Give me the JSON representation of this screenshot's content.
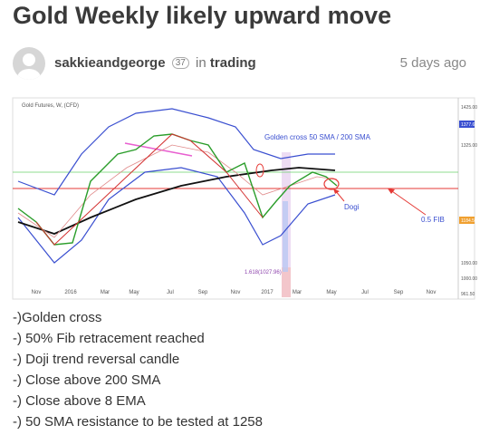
{
  "header": {
    "title": "Gold Weekly likely upward move"
  },
  "author": {
    "username": "sakkieandgeorge",
    "reputation": "37",
    "in": "in",
    "category": "trading",
    "posted": "5 days ago"
  },
  "chart": {
    "symbol": "Gold Futures, W, (CFD)",
    "annotations": {
      "golden_cross": "Golden cross 50 SMA / 200 SMA",
      "dogi": "Dogi",
      "fib": "0.5 FIB",
      "fib_ext": "1.618(1027.96)"
    },
    "x_labels": [
      "Nov",
      "2016",
      "Mar",
      "May",
      "Jul",
      "Sep",
      "Nov",
      "2017",
      "Mar",
      "May",
      "Jul",
      "Sep",
      "Nov"
    ],
    "price_labels": [
      "1425.00",
      "1377.63",
      "1325.00",
      "1184.50",
      "1050.00",
      "1000.00",
      "961.50"
    ]
  },
  "description": {
    "lines": [
      "-)Golden cross",
      "-) 50% Fib retracement reached",
      "-) Doji trend reversal candle",
      "-) Close above 200 SMA",
      "-) Close above 8 EMA",
      "-) 50 SMA resistance to be tested at 1258"
    ]
  }
}
